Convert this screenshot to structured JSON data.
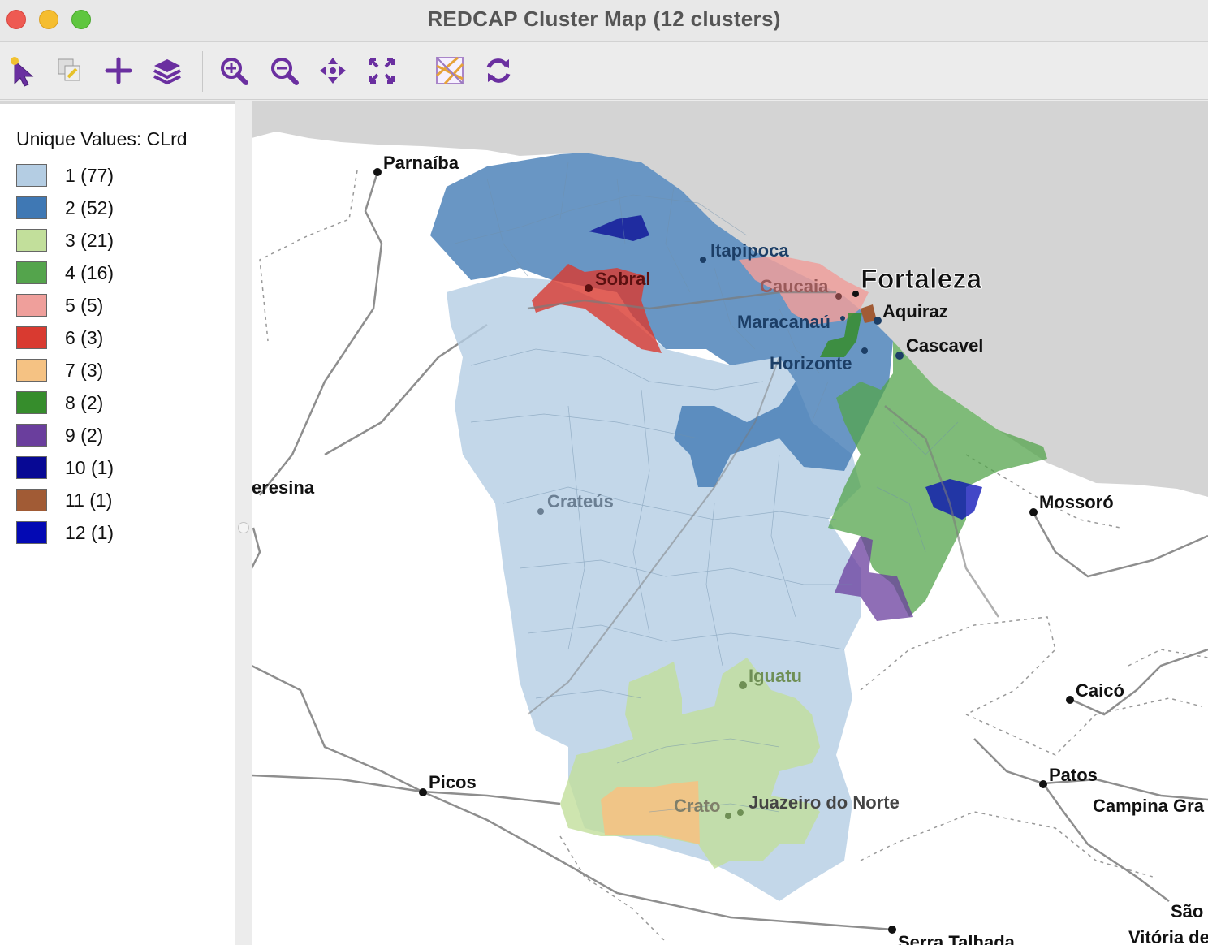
{
  "window": {
    "title": "REDCAP Cluster Map (12 clusters)"
  },
  "toolbar": {
    "tools": [
      {
        "name": "select-tool-icon"
      },
      {
        "name": "selection-shape-icon"
      },
      {
        "name": "add-layer-icon"
      },
      {
        "name": "layers-icon"
      },
      {
        "name": "zoom-in-icon"
      },
      {
        "name": "zoom-out-icon"
      },
      {
        "name": "pan-icon"
      },
      {
        "name": "full-extent-icon"
      },
      {
        "name": "basemap-icon"
      },
      {
        "name": "refresh-icon"
      }
    ],
    "accent_color": "#6a2fa0"
  },
  "legend": {
    "title": "Unique Values: CLrd",
    "items": [
      {
        "label": "1 (77)",
        "color": "#b4cde3"
      },
      {
        "label": "2 (52)",
        "color": "#3f78b4"
      },
      {
        "label": "3 (21)",
        "color": "#c2df9b"
      },
      {
        "label": "4 (16)",
        "color": "#54a44c"
      },
      {
        "label": "5 (5)",
        "color": "#ef9f9b"
      },
      {
        "label": "6 (3)",
        "color": "#d93a30"
      },
      {
        "label": "7 (3)",
        "color": "#f5c283"
      },
      {
        "label": "8 (2)",
        "color": "#368d2c"
      },
      {
        "label": "9 (2)",
        "color": "#6a3e9d"
      },
      {
        "label": "10 (1)",
        "color": "#070894"
      },
      {
        "label": "11 (1)",
        "color": "#a15b35"
      },
      {
        "label": "12 (1)",
        "color": "#0309b4"
      }
    ]
  },
  "map": {
    "cities": {
      "parnaiba": "Parnaíba",
      "itapipoca": "Itapipoca",
      "fortaleza": "Fortaleza",
      "sobral": "Sobral",
      "caucaia": "Caucaia",
      "aquiraz": "Aquiraz",
      "maracanau": "Maracanaú",
      "cascavel": "Cascavel",
      "horizonte": "Horizonte",
      "teresina": "eresina",
      "crateus": "Crateús",
      "mossoro": "Mossoró",
      "iguatu": "Iguatu",
      "caico": "Caicó",
      "picos": "Picos",
      "patos": "Patos",
      "crato": "Crato",
      "juazeiro": "Juazeiro do Norte",
      "campina": "Campina Gra",
      "sao": "São",
      "vitoria": "Vitória de",
      "serra": "Serra Talhada"
    }
  }
}
